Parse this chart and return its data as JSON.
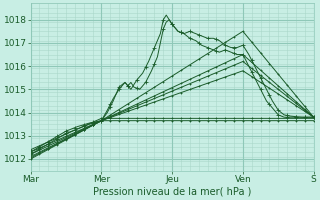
{
  "bg_color": "#c8eee4",
  "grid_major_color": "#8fc8b8",
  "grid_minor_color": "#aad8ca",
  "line_color": "#1a5c2a",
  "title": "Pression niveau de la mer( hPa )",
  "x_labels": [
    "Mar",
    "Mer",
    "Jeu",
    "Ven",
    "S"
  ],
  "ylim": [
    1011.5,
    1018.7
  ],
  "yticks": [
    1012,
    1013,
    1014,
    1015,
    1016,
    1017,
    1018
  ],
  "figsize": [
    3.2,
    2.0
  ],
  "dpi": 100
}
